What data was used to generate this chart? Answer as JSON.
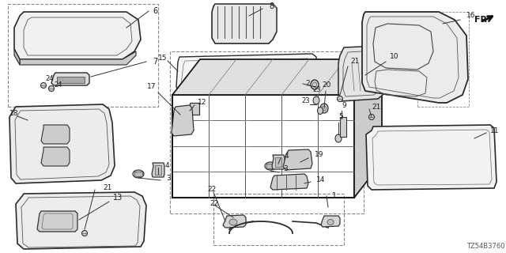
{
  "bg_color": "#ffffff",
  "diagram_code": "TZ54B3760",
  "fig_width": 6.4,
  "fig_height": 3.2,
  "dpi": 100
}
